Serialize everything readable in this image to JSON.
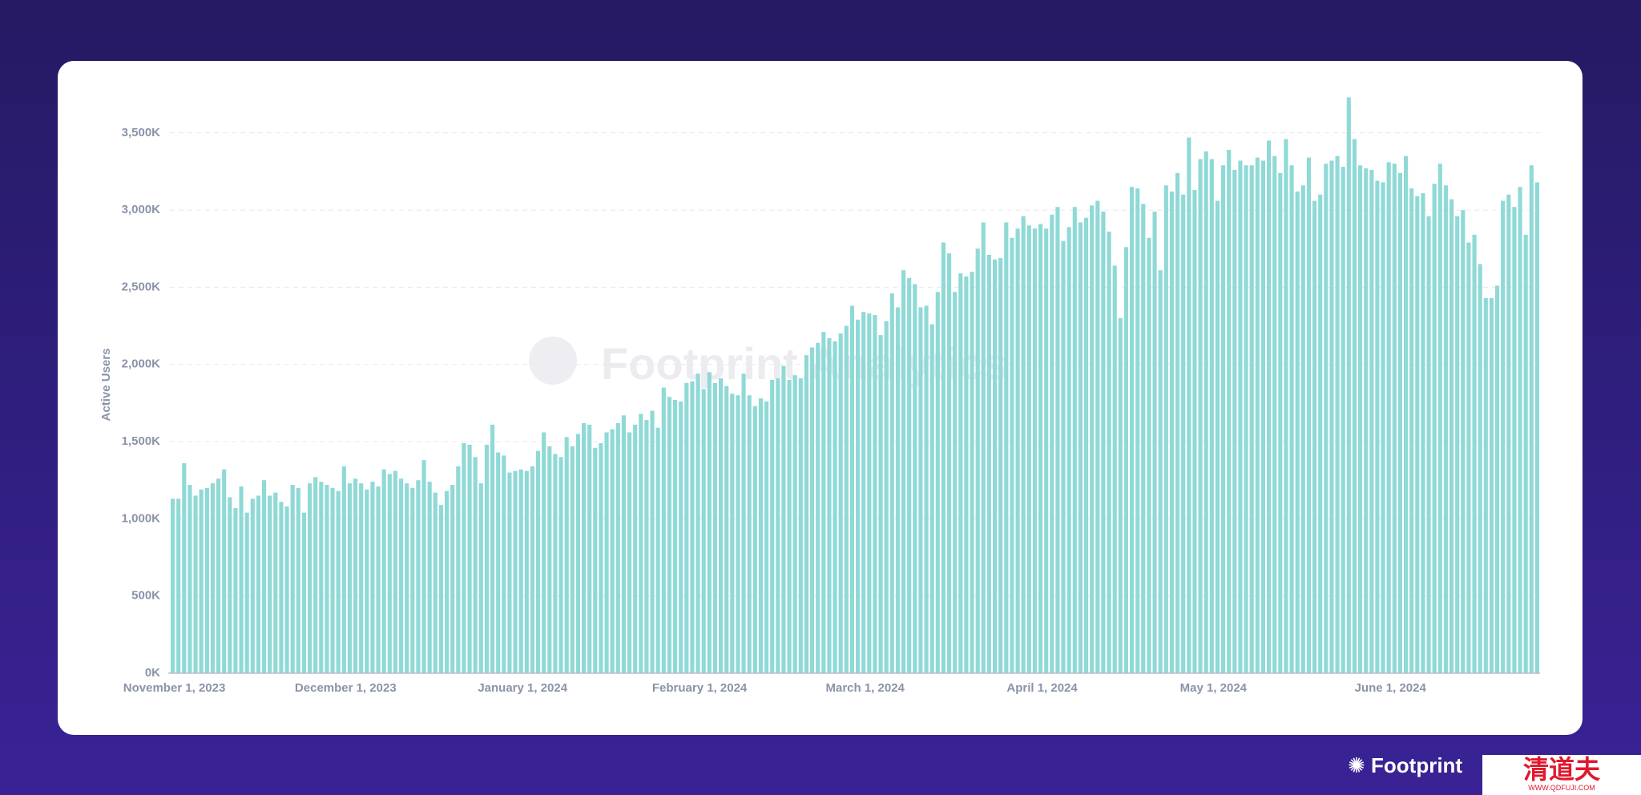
{
  "chart_data": {
    "type": "bar",
    "y_axis_label": "Active Users",
    "watermark": "Footprint Analytics",
    "color": "#8fd9d6",
    "grid": true,
    "ylim": [
      0,
      3800
    ],
    "yticks": [
      {
        "value": 0,
        "label": "0K"
      },
      {
        "value": 500,
        "label": "500K"
      },
      {
        "value": 1000,
        "label": "1,000K"
      },
      {
        "value": 1500,
        "label": "1,500K"
      },
      {
        "value": 2000,
        "label": "2,000K"
      },
      {
        "value": 2500,
        "label": "2,500K"
      },
      {
        "value": 3000,
        "label": "3,000K"
      },
      {
        "value": 3500,
        "label": "3,500K"
      }
    ],
    "categories": [
      "November 1, 2023",
      null,
      null,
      null,
      null,
      null,
      null,
      null,
      null,
      null,
      null,
      null,
      null,
      null,
      null,
      null,
      null,
      null,
      null,
      null,
      null,
      null,
      null,
      null,
      null,
      null,
      null,
      null,
      null,
      null,
      "December 1, 2023",
      null,
      null,
      null,
      null,
      null,
      null,
      null,
      null,
      null,
      null,
      null,
      null,
      null,
      null,
      null,
      null,
      null,
      null,
      null,
      null,
      null,
      null,
      null,
      null,
      null,
      null,
      null,
      null,
      null,
      null,
      "January 1, 2024",
      null,
      null,
      null,
      null,
      null,
      null,
      null,
      null,
      null,
      null,
      null,
      null,
      null,
      null,
      null,
      null,
      null,
      null,
      null,
      null,
      null,
      null,
      null,
      null,
      null,
      null,
      null,
      null,
      null,
      null,
      "February 1, 2024",
      null,
      null,
      null,
      null,
      null,
      null,
      null,
      null,
      null,
      null,
      null,
      null,
      null,
      null,
      null,
      null,
      null,
      null,
      null,
      null,
      null,
      null,
      null,
      null,
      null,
      null,
      null,
      null,
      "March 1, 2024",
      null,
      null,
      null,
      null,
      null,
      null,
      null,
      null,
      null,
      null,
      null,
      null,
      null,
      null,
      null,
      null,
      null,
      null,
      null,
      null,
      null,
      null,
      null,
      null,
      null,
      null,
      null,
      null,
      null,
      null,
      "April 1, 2024",
      null,
      null,
      null,
      null,
      null,
      null,
      null,
      null,
      null,
      null,
      null,
      null,
      null,
      null,
      null,
      null,
      null,
      null,
      null,
      null,
      null,
      null,
      null,
      null,
      null,
      null,
      null,
      null,
      null,
      "May 1, 2024",
      null,
      null,
      null,
      null,
      null,
      null,
      null,
      null,
      null,
      null,
      null,
      null,
      null,
      null,
      null,
      null,
      null,
      null,
      null,
      null,
      null,
      null,
      null,
      null,
      null,
      null,
      null,
      null,
      null,
      null,
      "June 1, 2024",
      null,
      null,
      null,
      null,
      null,
      null,
      null,
      null,
      null,
      null,
      null,
      null,
      null,
      null,
      null,
      null,
      null,
      null,
      null,
      null,
      null,
      null,
      null,
      null,
      null,
      null
    ],
    "values": [
      1130,
      1130,
      1360,
      1220,
      1150,
      1190,
      1200,
      1230,
      1260,
      1320,
      1140,
      1070,
      1210,
      1040,
      1130,
      1150,
      1250,
      1150,
      1170,
      1110,
      1080,
      1220,
      1200,
      1040,
      1230,
      1270,
      1240,
      1220,
      1200,
      1180,
      1340,
      1230,
      1260,
      1230,
      1190,
      1240,
      1210,
      1320,
      1290,
      1310,
      1260,
      1230,
      1200,
      1250,
      1380,
      1240,
      1170,
      1090,
      1180,
      1220,
      1340,
      1490,
      1480,
      1400,
      1230,
      1480,
      1610,
      1430,
      1410,
      1300,
      1310,
      1320,
      1310,
      1340,
      1440,
      1560,
      1470,
      1420,
      1400,
      1530,
      1470,
      1550,
      1620,
      1610,
      1460,
      1490,
      1560,
      1580,
      1620,
      1670,
      1560,
      1610,
      1680,
      1640,
      1700,
      1590,
      1850,
      1790,
      1770,
      1760,
      1880,
      1890,
      1940,
      1840,
      1950,
      1880,
      1910,
      1860,
      1810,
      1800,
      1940,
      1800,
      1730,
      1780,
      1760,
      1900,
      1910,
      1990,
      1900,
      1930,
      1910,
      2060,
      2110,
      2140,
      2210,
      2170,
      2150,
      2200,
      2250,
      2380,
      2290,
      2340,
      2330,
      2320,
      2190,
      2280,
      2460,
      2370,
      2610,
      2560,
      2520,
      2370,
      2380,
      2260,
      2470,
      2790,
      2720,
      2470,
      2590,
      2570,
      2600,
      2750,
      2920,
      2710,
      2680,
      2690,
      2920,
      2820,
      2880,
      2960,
      2900,
      2880,
      2910,
      2880,
      2970,
      3020,
      2800,
      2890,
      3020,
      2920,
      2950,
      3030,
      3060,
      2990,
      2860,
      2640,
      2300,
      2760,
      3150,
      3140,
      3040,
      2820,
      2990,
      2610,
      3160,
      3120,
      3240,
      3100,
      3470,
      3130,
      3330,
      3380,
      3330,
      3060,
      3290,
      3390,
      3260,
      3320,
      3290,
      3290,
      3340,
      3320,
      3450,
      3350,
      3240,
      3460,
      3290,
      3120,
      3160,
      3340,
      3060,
      3100,
      3300,
      3320,
      3350,
      3280,
      3730,
      3460,
      3290,
      3270,
      3260,
      3190,
      3180,
      3310,
      3300,
      3240,
      3350,
      3140,
      3090,
      3110,
      2960,
      3170,
      3300,
      3160,
      3070,
      2960,
      3000,
      2790,
      2840,
      2650,
      2430,
      2430,
      2510,
      3060,
      3100,
      3020,
      3150,
      2840,
      3290,
      3180
    ]
  },
  "footer": {
    "logo": "Footprint",
    "badge": "清道夫",
    "badge_url": "WWW.QDFUJI.COM"
  }
}
